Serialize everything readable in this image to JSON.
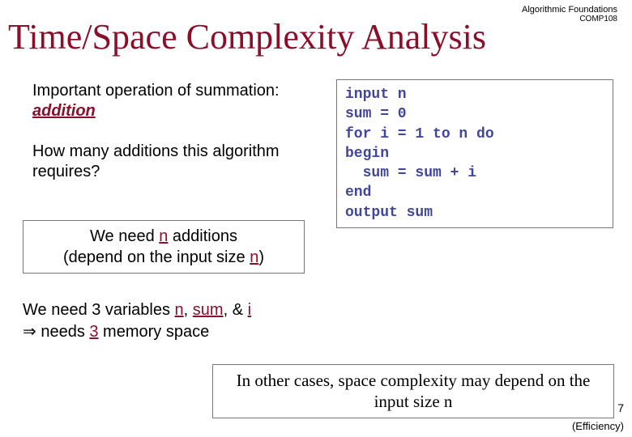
{
  "header": {
    "line1": "Algorithmic Foundations",
    "line2": "COMP108"
  },
  "title": {
    "text": "Time/Space Complexity Analysis",
    "color": "#8a0f2b"
  },
  "intro": {
    "p1_a": "Important operation of summation: ",
    "p1_b": "addition",
    "p2": "How many additions this algorithm requires?"
  },
  "code": {
    "lines": [
      "input n",
      "sum = 0",
      "for i = 1 to n do",
      "begin",
      "  sum = sum + i",
      "end",
      "output sum"
    ],
    "text_color": "#414699"
  },
  "box1": {
    "a": "We need ",
    "n": "n",
    "b": " additions",
    "c": "(depend on the input size ",
    "d": ")",
    "hl_color": "#8a0f2b"
  },
  "box2": {
    "a": "We need 3 variables ",
    "v1": "n",
    "sep1": ", ",
    "v2": "sum",
    "sep2": ", & ",
    "v3": "i",
    "arrow": "⇒",
    "b": " needs ",
    "three": "3",
    "c": " memory space",
    "hl_color": "#8a0f2b"
  },
  "box3": {
    "text": "In other cases, space complexity may depend on the input size n"
  },
  "page_number": "7",
  "footer": "(Efficiency)",
  "colors": {
    "background": "#ffffff",
    "border": "#777777"
  }
}
